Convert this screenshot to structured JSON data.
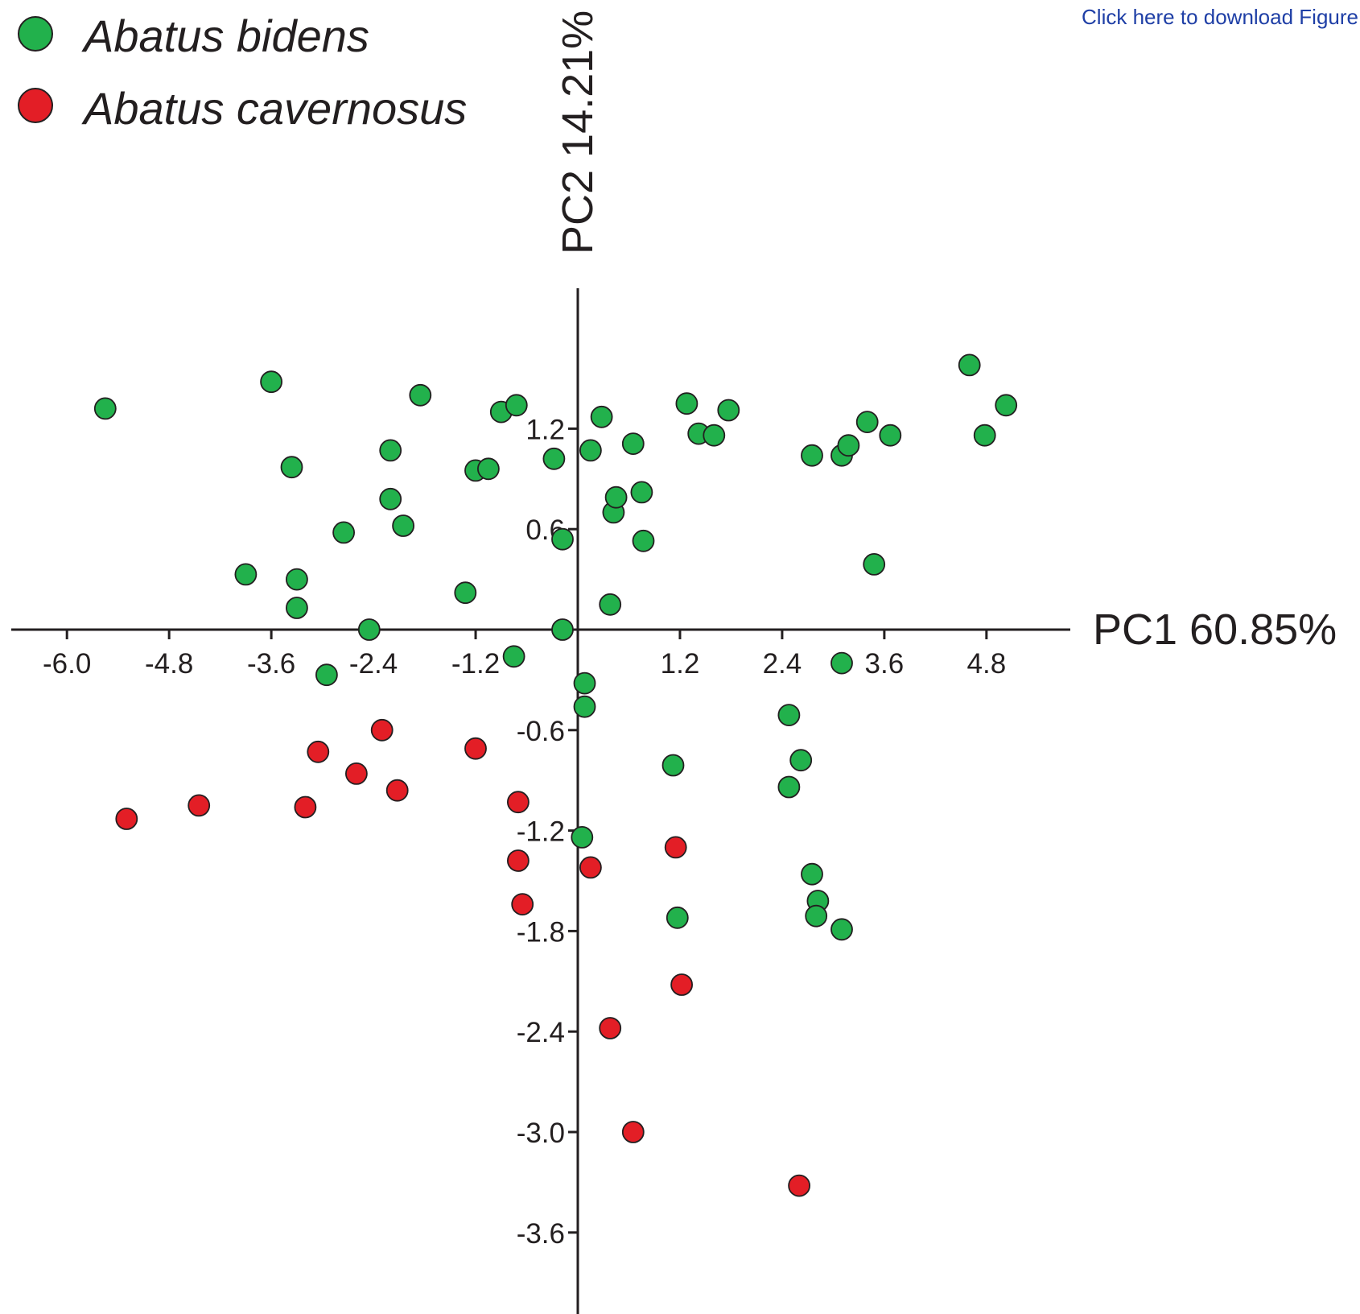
{
  "link": {
    "download": "Click here to download Figure"
  },
  "colors": {
    "bidens": "#22b14c",
    "cavernosus": "#e31e26",
    "stroke": "#231f20",
    "link": "#1f3fa6"
  },
  "chart_data": {
    "type": "scatter",
    "xlabel": "PC1 60.85%",
    "ylabel": "PC2 14.21%",
    "xlim": [
      -6.6,
      5.6
    ],
    "ylim": [
      -4.2,
      2.2
    ],
    "x_ticks": [
      -6.0,
      -4.8,
      -3.6,
      -2.4,
      -1.2,
      1.2,
      2.4,
      3.6,
      4.8
    ],
    "x_tick_labels": [
      "-6.0",
      "-4.8",
      "-3.6",
      "-2.4",
      "-1.2",
      "1.2",
      "2.4",
      "3.6",
      "4.8"
    ],
    "y_ticks": [
      1.2,
      0.6,
      -0.6,
      -1.2,
      -1.8,
      -2.4,
      -3.0,
      -3.6
    ],
    "y_tick_labels": [
      "1.2",
      "0.6",
      "-0.6",
      "-1.2",
      "-1.8",
      "-2.4",
      "-3.0",
      "-3.6"
    ],
    "legend_position": "top-left",
    "grid": false,
    "series": [
      {
        "name": "Abatus bidens",
        "color": "#22b14c",
        "points": [
          [
            -5.55,
            1.32
          ],
          [
            -3.6,
            1.48
          ],
          [
            -3.36,
            0.97
          ],
          [
            -3.9,
            0.33
          ],
          [
            -3.3,
            0.3
          ],
          [
            -3.3,
            0.13
          ],
          [
            -2.75,
            0.58
          ],
          [
            -2.95,
            -0.27
          ],
          [
            -2.45,
            0.0
          ],
          [
            -2.2,
            1.07
          ],
          [
            -2.2,
            0.78
          ],
          [
            -2.05,
            0.62
          ],
          [
            -1.85,
            1.4
          ],
          [
            -1.32,
            0.22
          ],
          [
            -1.2,
            0.95
          ],
          [
            -1.05,
            0.96
          ],
          [
            -0.9,
            1.3
          ],
          [
            -0.72,
            1.34
          ],
          [
            -0.75,
            -0.16
          ],
          [
            -0.28,
            1.02
          ],
          [
            -0.18,
            0.54
          ],
          [
            -0.18,
            0.0
          ],
          [
            0.15,
            1.07
          ],
          [
            0.28,
            1.27
          ],
          [
            0.08,
            -0.32
          ],
          [
            0.08,
            -0.46
          ],
          [
            0.05,
            -1.24
          ],
          [
            0.38,
            0.15
          ],
          [
            0.42,
            0.7
          ],
          [
            0.45,
            0.79
          ],
          [
            0.65,
            1.11
          ],
          [
            0.75,
            0.82
          ],
          [
            0.77,
            0.53
          ],
          [
            1.12,
            -0.81
          ],
          [
            1.17,
            -1.72
          ],
          [
            1.28,
            1.35
          ],
          [
            1.42,
            1.17
          ],
          [
            1.6,
            1.16
          ],
          [
            1.77,
            1.31
          ],
          [
            2.48,
            -0.51
          ],
          [
            2.62,
            -0.78
          ],
          [
            2.48,
            -0.94
          ],
          [
            2.75,
            1.04
          ],
          [
            2.75,
            -1.46
          ],
          [
            2.82,
            -1.62
          ],
          [
            2.8,
            -1.71
          ],
          [
            3.1,
            -1.79
          ],
          [
            3.1,
            -0.2
          ],
          [
            3.1,
            1.04
          ],
          [
            3.18,
            1.1
          ],
          [
            3.4,
            1.24
          ],
          [
            3.48,
            0.39
          ],
          [
            3.67,
            1.16
          ],
          [
            4.6,
            1.58
          ],
          [
            4.78,
            1.16
          ],
          [
            5.03,
            1.34
          ]
        ]
      },
      {
        "name": "Abatus cavernosus",
        "color": "#e31e26",
        "points": [
          [
            -5.3,
            -1.13
          ],
          [
            -4.45,
            -1.05
          ],
          [
            -3.2,
            -1.06
          ],
          [
            -3.05,
            -0.73
          ],
          [
            -2.6,
            -0.86
          ],
          [
            -2.3,
            -0.6
          ],
          [
            -2.12,
            -0.96
          ],
          [
            -1.2,
            -0.71
          ],
          [
            -0.7,
            -1.03
          ],
          [
            -0.7,
            -1.38
          ],
          [
            -0.65,
            -1.64
          ],
          [
            0.15,
            -1.42
          ],
          [
            1.15,
            -1.3
          ],
          [
            1.22,
            -2.12
          ],
          [
            0.38,
            -2.38
          ],
          [
            0.65,
            -3.0
          ],
          [
            2.6,
            -3.32
          ]
        ]
      }
    ]
  },
  "legend": {
    "items": [
      {
        "label": "Abatus bidens",
        "color": "#22b14c"
      },
      {
        "label": "Abatus cavernosus",
        "color": "#e31e26"
      }
    ]
  }
}
